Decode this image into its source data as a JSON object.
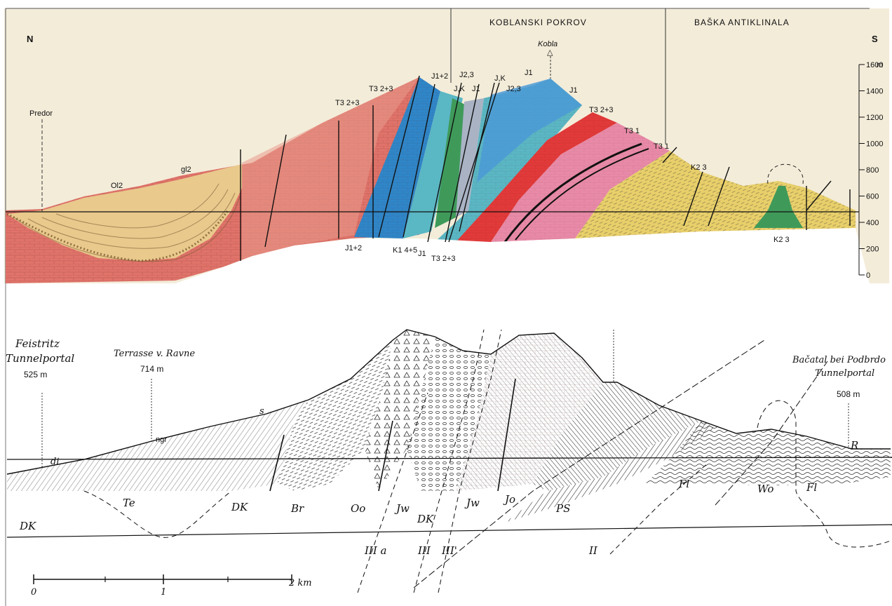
{
  "top": {
    "headers": [
      "KOBLANSKI POKROV",
      "BAŠKA ANTIKLINALA"
    ],
    "dir_n": "N",
    "dir_s": "S",
    "peak": "Kobla",
    "predor": "Predor",
    "axis_unit": "m",
    "axis_ticks": [
      "1600",
      "1400",
      "1200",
      "1000",
      "800",
      "600",
      "400",
      "200",
      "0"
    ],
    "labels": {
      "ol2": "Ol2",
      "gl2": "gl2",
      "t3_a": "T3 2+3",
      "t3_b": "T3 2+3",
      "t3_c": "T3 2+3",
      "t3_d": "T3 2+3",
      "j12_top": "J1+2",
      "j23": "J2,3",
      "jk_a": "J,K",
      "j1_a": "J1",
      "jk_b": "J,K",
      "j23_b": "J2,3",
      "j1_b": "J1",
      "j1_c": "J1",
      "t31_a": "T3 1",
      "t31_b": "T3 1",
      "k23_a": "K2 3",
      "k23_b": "K2 3",
      "j12_bot": "J1+2",
      "k1": "K1 4+5",
      "j1_bot": "J1"
    }
  },
  "bottom": {
    "left_portal": [
      "Feistritz",
      "Tunnelportal",
      "525 m"
    ],
    "ravne": [
      "Terrasse v. Ravne",
      "714 m"
    ],
    "right_portal": [
      "Bačatal bei Podbrdo",
      "Tunnelportal",
      "508 m"
    ],
    "units": {
      "dh1": "DK",
      "te": "Te",
      "dh2": "DK",
      "br": "Br",
      "oo": "Oo",
      "jw1": "Jw",
      "dh3": "DK",
      "jw2": "Jw",
      "jo": "Jo",
      "ps": "PS",
      "fl1": "Fl",
      "wo": "Wo",
      "fl2": "Fl",
      "r": "R",
      "di": "di",
      "s": "s",
      "ngr": "ngr"
    },
    "faults": [
      "III a",
      "III",
      "III'",
      "II"
    ],
    "scale": [
      "0",
      "1",
      "2 km"
    ]
  },
  "colors": {
    "pink_red": "#e0736a",
    "salmon": "#e99a8c",
    "tan": "#e9c98c",
    "yellow": "#e8cf6a",
    "blue": "#2f86c8",
    "teal": "#5ab7c4",
    "green": "#3f9a5a",
    "red": "#e23a3a",
    "pink": "#e88aa8",
    "grey": "#a9b3c4",
    "bg_top": "#f3ecd9"
  }
}
